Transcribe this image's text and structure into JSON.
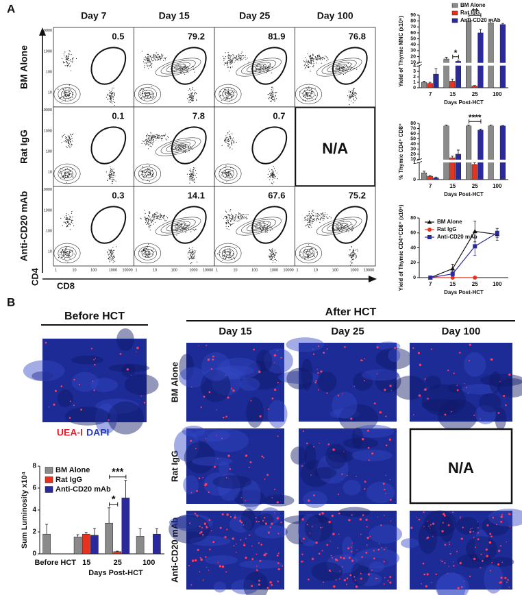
{
  "panel_a": {
    "label": "A",
    "columns": [
      "Day 7",
      "Day 15",
      "Day 25",
      "Day 100"
    ],
    "rows": [
      "BM Alone",
      "Rat IgG",
      "Anti-CD20 mAb"
    ],
    "gates": [
      [
        0.5,
        79.2,
        81.9,
        76.8
      ],
      [
        0.1,
        7.8,
        0.7,
        null
      ],
      [
        0.3,
        14.1,
        67.6,
        75.2
      ]
    ],
    "na_text": "N/A",
    "y_axis_label": "CD4",
    "x_axis_label": "CD8",
    "y_ticks": [
      "10000",
      "1000",
      "100",
      "10"
    ],
    "x_ticks": [
      "1",
      "10",
      "100",
      "1000",
      "10000"
    ]
  },
  "panel_b": {
    "label": "B",
    "before_title": "Before HCT",
    "after_title": "After HCT",
    "columns": [
      "Day 15",
      "Day 25",
      "Day 100"
    ],
    "rows": [
      "BM Alone",
      "Rat IgG",
      "Anti-CD20 mAb"
    ],
    "stain_labels": [
      "UEA-I",
      "DAPI"
    ],
    "na_text": "N/A"
  },
  "chart_data": [
    {
      "type": "bar",
      "y_label": "Yield of Thymic MNC (x10⁶)",
      "x_label": "Days Post-HCT",
      "categories": [
        "7",
        "15",
        "25",
        "100"
      ],
      "series": [
        {
          "name": "BM Alone",
          "color": "#8a8a8a",
          "values": [
            1,
            16,
            80,
            77
          ],
          "errors": [
            0.2,
            3,
            4,
            4
          ]
        },
        {
          "name": "Rat IgG",
          "color": "#e8321e",
          "values": [
            0.8,
            1.2,
            0.3,
            null
          ],
          "errors": [
            0.2,
            0.4,
            0.1,
            null
          ]
        },
        {
          "name": "Anti-CD20 mAb",
          "color": "#2a2a9c",
          "values": [
            2.5,
            12,
            60,
            74
          ],
          "errors": [
            1,
            2,
            6,
            2
          ]
        }
      ],
      "ylim": [
        0,
        90
      ],
      "ybreak": [
        4,
        10
      ],
      "yticks": [
        0,
        1,
        2,
        3,
        4,
        10,
        20,
        30,
        40,
        50,
        60,
        70,
        80,
        90
      ],
      "annotations": [
        "*",
        "**"
      ],
      "legend": "upper right"
    },
    {
      "type": "bar",
      "y_label": "% Thymic CD4⁺ CD8⁺",
      "x_label": "Days Post-HCT",
      "categories": [
        "7",
        "15",
        "25",
        "100"
      ],
      "series": [
        {
          "name": "BM Alone",
          "color": "#8a8a8a",
          "values": [
            0.4,
            75,
            75,
            75
          ],
          "errors": [
            0.1,
            2,
            2,
            2
          ]
        },
        {
          "name": "Rat IgG",
          "color": "#e8321e",
          "values": [
            0.2,
            13,
            0.9,
            null
          ],
          "errors": [
            0.05,
            3,
            0.1,
            null
          ]
        },
        {
          "name": "Anti-CD20 mAb",
          "color": "#2a2a9c",
          "values": [
            0.1,
            20,
            67,
            75
          ],
          "errors": [
            0.05,
            8,
            2,
            1
          ]
        }
      ],
      "ylim": [
        0,
        80
      ],
      "ybreak": [
        1,
        10
      ],
      "yticks": [
        0,
        1,
        10,
        20,
        30,
        40,
        50,
        60,
        70,
        80
      ],
      "annotations": [
        "****"
      ]
    },
    {
      "type": "line",
      "y_label": "Yield of Thymic CD4⁺CD8⁺ (x10⁶)",
      "x_label": "Days Post-HCT",
      "categories": [
        "7",
        "15",
        "25",
        "100"
      ],
      "series": [
        {
          "name": "BM Alone",
          "color": "#111111",
          "marker": "triangle",
          "values": [
            0,
            12,
            62,
            58
          ],
          "errors": [
            0,
            6,
            14,
            8
          ]
        },
        {
          "name": "Rat IgG",
          "color": "#e8321e",
          "marker": "circle",
          "values": [
            0,
            0,
            0,
            null
          ],
          "errors": [
            0,
            0,
            0,
            null
          ]
        },
        {
          "name": "Anti-CD20 mAb",
          "color": "#2a2a9c",
          "marker": "square",
          "values": [
            0,
            5,
            42,
            60
          ],
          "errors": [
            0,
            3,
            12,
            6
          ]
        }
      ],
      "ylim": [
        0,
        80
      ],
      "yticks": [
        0,
        20,
        40,
        60,
        80
      ],
      "legend": "upper left"
    },
    {
      "type": "bar",
      "y_label": "Sum Luminosity x10⁴",
      "x_label": "Days Post-HCT",
      "categories": [
        "Before HCT",
        "15",
        "25",
        "100"
      ],
      "series": [
        {
          "name": "BM Alone",
          "color": "#8a8a8a",
          "values": [
            1.8,
            1.55,
            2.8,
            1.6
          ],
          "errors": [
            0.9,
            0.2,
            1.4,
            0.7
          ]
        },
        {
          "name": "Rat IgG",
          "color": "#e8321e",
          "values": [
            null,
            1.8,
            0.2,
            null
          ],
          "errors": [
            null,
            0.15,
            0.05,
            null
          ]
        },
        {
          "name": "Anti-CD20 mAb",
          "color": "#2a2a9c",
          "values": [
            null,
            1.7,
            5.1,
            1.8
          ],
          "errors": [
            null,
            0.6,
            1.6,
            0.5
          ]
        }
      ],
      "ylim": [
        0,
        8
      ],
      "yticks": [
        0,
        2,
        4,
        6,
        8
      ],
      "annotations": [
        "*",
        "***"
      ],
      "legend": "upper left"
    }
  ]
}
